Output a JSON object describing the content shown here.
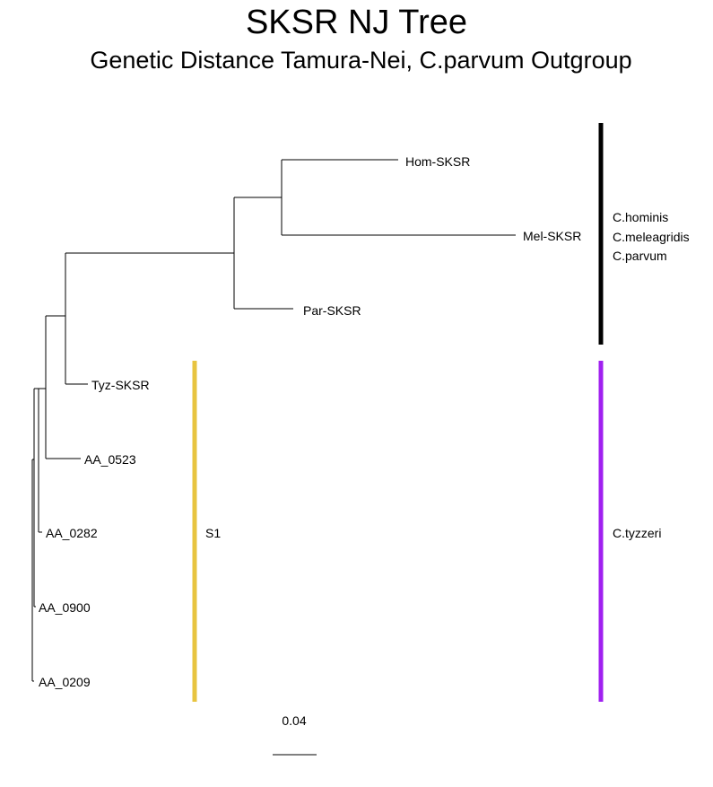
{
  "title": "SKSR NJ Tree",
  "subtitle": "Genetic Distance Tamura-Nei, C.parvum Outgroup",
  "tips": {
    "hom": "Hom-SKSR",
    "mel": "Mel-SKSR",
    "par": "Par-SKSR",
    "tyz": "Tyz-SKSR",
    "aa0523": "AA_0523",
    "aa0282": "AA_0282",
    "aa0900": "AA_0900",
    "aa0209": "AA_0209"
  },
  "clades": {
    "parvum_group": {
      "lines": [
        "C.hominis",
        "C.meleagridis",
        "C.parvum"
      ],
      "color": "#000000"
    },
    "tyzzeri": {
      "label": "C.tyzzeri",
      "color": "#a020f0"
    },
    "s1": {
      "label": "S1",
      "color": "#e8c440"
    }
  },
  "scale_bar": {
    "label": "0.04"
  }
}
